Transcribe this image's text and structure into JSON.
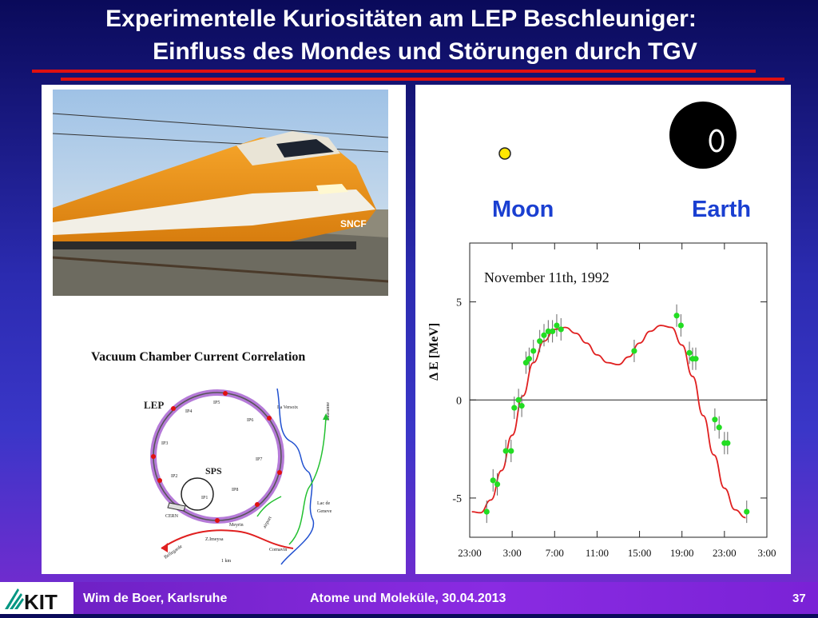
{
  "slide": {
    "title_line1": "Experimentelle Kuriositäten am LEP Beschleuniger:",
    "title_line2": "Einfluss des Mondes und Störungen durch TGV",
    "page_number": "37"
  },
  "footer": {
    "author": "Wim de Boer, Karlsruhe",
    "lecture": "Atome und Moleküle,  30.04.2013",
    "logo_text": "KIT"
  },
  "left_panel": {
    "train_livery_text": "SNCF",
    "diagram_title": "Vacuum Chamber Current Correlation",
    "labels": {
      "lep": "LEP",
      "sps": "SPS",
      "ip1": "IP1",
      "ip2": "IP2",
      "ip3": "IP3",
      "ip4": "IP4",
      "ip5": "IP5",
      "ip6": "IP6",
      "ip7": "IP7",
      "ip8": "IP8",
      "cern": "CERN",
      "meyrin": "Meyrin",
      "zimeysa": "Z.Imeysa",
      "airport": "airport",
      "cornavin": "Cornavin",
      "lac": "Lac de",
      "geneve": "Geneve",
      "versoix": "La Versoix",
      "lausanne": "Lausanne",
      "bellegarde": "Bellegarde",
      "km": "1 km"
    }
  },
  "right_panel": {
    "moon_label": "Moon",
    "earth_label": "Earth",
    "colors": {
      "label_blue": "#1a3fd1",
      "fit_line": "#e02020",
      "points": "#22dd22"
    }
  },
  "chart_data": {
    "type": "scatter",
    "title": "November 11th, 1992",
    "ylabel": "Δ E [MeV]",
    "xlabel": "",
    "ylim": [
      -7,
      8
    ],
    "yticks": [
      5,
      0,
      -5
    ],
    "xtick_labels": [
      "23:00",
      "3:00",
      "7:00",
      "11:00",
      "15:00",
      "19:00",
      "23:00",
      "3:00"
    ],
    "xticks_hours": [
      -1,
      3,
      7,
      11,
      15,
      19,
      23,
      27
    ],
    "xlim_hours": [
      -1,
      27
    ],
    "grid": false,
    "series": [
      {
        "kind": "points",
        "x": [
          0.6,
          1.2,
          1.6,
          2.4,
          2.9,
          3.2,
          3.6,
          3.9,
          4.3,
          4.6,
          5.0,
          5.6,
          6.0,
          6.4,
          6.8,
          7.2,
          7.6,
          14.5,
          18.5,
          18.9,
          19.7,
          20.0,
          20.3,
          22.1,
          22.5,
          23.0,
          23.3,
          25.1
        ],
        "y": [
          -5.7,
          -4.1,
          -4.3,
          -2.6,
          -2.6,
          -0.4,
          0.0,
          -0.3,
          1.9,
          2.1,
          2.5,
          3.0,
          3.3,
          3.5,
          3.5,
          3.8,
          3.6,
          2.5,
          4.3,
          3.8,
          2.4,
          2.1,
          2.1,
          -1.0,
          -1.4,
          -2.2,
          -2.2,
          -5.7
        ]
      },
      {
        "kind": "fit_curve",
        "x": [
          -0.8,
          0,
          1,
          2,
          3,
          4,
          5,
          6,
          7,
          8,
          9,
          10,
          11,
          12,
          13,
          14,
          15,
          16,
          17,
          18,
          19,
          20,
          21,
          22,
          23,
          24,
          25
        ],
        "y": [
          -5.7,
          -5.75,
          -5.1,
          -3.6,
          -1.8,
          0.2,
          1.9,
          3.0,
          3.6,
          3.7,
          3.4,
          2.9,
          2.3,
          1.9,
          1.8,
          2.2,
          2.9,
          3.5,
          3.8,
          3.7,
          2.8,
          1.2,
          -0.8,
          -2.8,
          -4.5,
          -5.6,
          -6.0
        ]
      }
    ]
  }
}
